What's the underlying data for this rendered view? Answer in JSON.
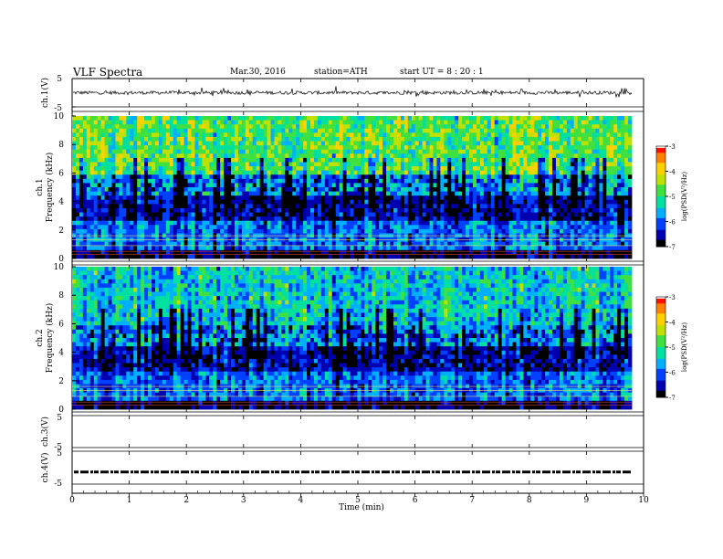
{
  "header": {
    "title": "VLF  Spectra",
    "date": "Mar.30, 2016",
    "station": "station=ATH",
    "start": "start  UT  =   8  : 20 : 1"
  },
  "colors": {
    "colormap": [
      "#000000",
      "#0000b0",
      "#0040ff",
      "#00b0ff",
      "#00e0a0",
      "#40e040",
      "#c0e000",
      "#ffd000",
      "#ff8000",
      "#ff1000",
      "#ffffff"
    ]
  },
  "chart_data": [
    {
      "type": "line",
      "ylabel": "ch.1(V)",
      "yticks": [
        "5",
        "-5"
      ],
      "ylim": [
        -5,
        5
      ],
      "x_range_min": [
        0,
        9.8
      ],
      "description_values": "voltage waveform oscillating roughly between -1 and +1.5 V"
    },
    {
      "type": "heatmap",
      "ylabel": "ch.1\nFrequency (kHz)",
      "yticks": [
        "0",
        "2",
        "4",
        "6",
        "8",
        "10"
      ],
      "ylim": [
        0,
        10
      ],
      "colorbar": {
        "label": "log(PSD(V²/Hz)",
        "ticks": [
          "-3",
          "-4",
          "-5",
          "-6",
          "-7"
        ],
        "range": [
          -7,
          -3
        ]
      }
    },
    {
      "type": "heatmap",
      "ylabel": "ch.2\nFrequency (kHz)",
      "yticks": [
        "0",
        "2",
        "4",
        "6",
        "8",
        "10"
      ],
      "ylim": [
        0,
        10
      ],
      "colorbar": {
        "label": "log(PSD(V²/Hz)",
        "ticks": [
          "-3",
          "-4",
          "-5",
          "-6",
          "-7"
        ],
        "range": [
          -7,
          -3
        ]
      }
    },
    {
      "type": "line",
      "ylabel": "ch.3(V)",
      "yticks": [
        "5",
        "-5"
      ],
      "ylim": [
        -5,
        5
      ]
    },
    {
      "type": "line",
      "ylabel": "ch.4(V)",
      "yticks": [
        "5",
        "-5"
      ],
      "ylim": [
        -5,
        5
      ],
      "level": -1.5
    }
  ],
  "xaxis": {
    "label": "Time  (min)",
    "ticks": [
      "0",
      "1",
      "2",
      "3",
      "4",
      "5",
      "6",
      "7",
      "8",
      "9",
      "10"
    ],
    "xlim": [
      0,
      10
    ]
  }
}
